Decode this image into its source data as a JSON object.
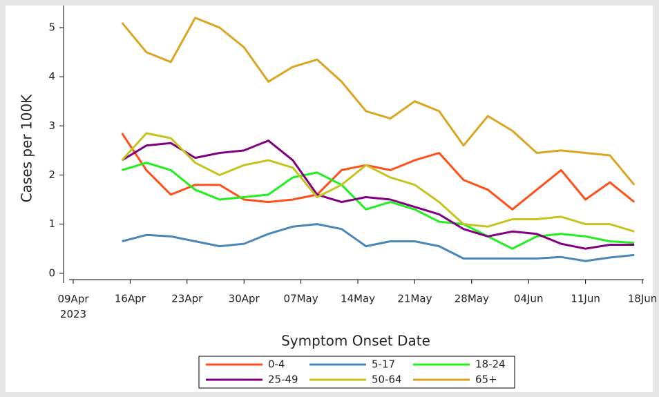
{
  "chart_data": {
    "type": "line",
    "x_label": "Symptom Onset Date",
    "y_label": "Cases per 100K",
    "x": [
      "2023-04-15",
      "2023-04-18",
      "2023-04-21",
      "2023-04-24",
      "2023-04-27",
      "2023-04-30",
      "2023-05-03",
      "2023-05-06",
      "2023-05-09",
      "2023-05-12",
      "2023-05-15",
      "2023-05-18",
      "2023-05-21",
      "2023-05-24",
      "2023-05-27",
      "2023-05-30",
      "2023-06-02",
      "2023-06-05",
      "2023-06-08",
      "2023-06-11",
      "2023-06-14",
      "2023-06-17"
    ],
    "xlim": [
      "2023-04-09",
      "2023-06-18"
    ],
    "xticks": [
      {
        "value": "2023-04-09",
        "label": "09Apr 2023"
      },
      {
        "value": "2023-04-16",
        "label": "16Apr"
      },
      {
        "value": "2023-04-23",
        "label": "23Apr"
      },
      {
        "value": "2023-04-30",
        "label": "30Apr"
      },
      {
        "value": "2023-05-07",
        "label": "07May"
      },
      {
        "value": "2023-05-14",
        "label": "14May"
      },
      {
        "value": "2023-05-21",
        "label": "21May"
      },
      {
        "value": "2023-05-28",
        "label": "28May"
      },
      {
        "value": "2023-06-04",
        "label": "04Jun"
      },
      {
        "value": "2023-06-11",
        "label": "11Jun"
      },
      {
        "value": "2023-06-18",
        "label": "18Jun"
      }
    ],
    "ylim": [
      -0.2,
      5.45
    ],
    "yticks": [
      0,
      1,
      2,
      3,
      4,
      5
    ],
    "series": [
      {
        "name": "0-4",
        "color": "#ff4f1a",
        "values": [
          2.85,
          2.1,
          1.6,
          1.8,
          1.8,
          1.5,
          1.45,
          1.5,
          1.6,
          2.1,
          2.2,
          2.1,
          2.3,
          2.45,
          1.9,
          1.7,
          1.3,
          1.7,
          2.1,
          1.5,
          1.85,
          1.45
        ]
      },
      {
        "name": "5-17",
        "color": "#4a86b8",
        "values": [
          0.65,
          0.78,
          0.75,
          0.65,
          0.55,
          0.6,
          0.8,
          0.95,
          1.0,
          0.9,
          0.55,
          0.65,
          0.65,
          0.55,
          0.3,
          0.3,
          0.3,
          0.3,
          0.33,
          0.25,
          0.32,
          0.37
        ]
      },
      {
        "name": "18-24",
        "color": "#22ee22",
        "values": [
          2.1,
          2.25,
          2.1,
          1.7,
          1.5,
          1.55,
          1.6,
          1.95,
          2.05,
          1.8,
          1.3,
          1.45,
          1.3,
          1.05,
          1.0,
          0.75,
          0.5,
          0.75,
          0.8,
          0.75,
          0.65,
          0.62
        ]
      },
      {
        "name": "25-49",
        "color": "#800080",
        "values": [
          2.3,
          2.6,
          2.65,
          2.35,
          2.45,
          2.5,
          2.7,
          2.3,
          1.6,
          1.45,
          1.55,
          1.5,
          1.35,
          1.2,
          0.9,
          0.75,
          0.85,
          0.8,
          0.6,
          0.5,
          0.58,
          0.58
        ]
      },
      {
        "name": "50-64",
        "color": "#c4c41e",
        "values": [
          2.3,
          2.85,
          2.75,
          2.25,
          2.0,
          2.2,
          2.3,
          2.15,
          1.55,
          1.8,
          2.2,
          1.95,
          1.8,
          1.45,
          1.0,
          0.95,
          1.1,
          1.1,
          1.15,
          1.0,
          1.0,
          0.85
        ]
      },
      {
        "name": "65+",
        "color": "#daa520",
        "values": [
          5.1,
          4.5,
          4.3,
          5.2,
          5.0,
          4.6,
          3.9,
          4.2,
          4.35,
          3.9,
          3.3,
          3.15,
          3.5,
          3.3,
          2.6,
          3.2,
          2.9,
          2.45,
          2.5,
          2.45,
          2.4,
          1.8
        ]
      }
    ]
  }
}
